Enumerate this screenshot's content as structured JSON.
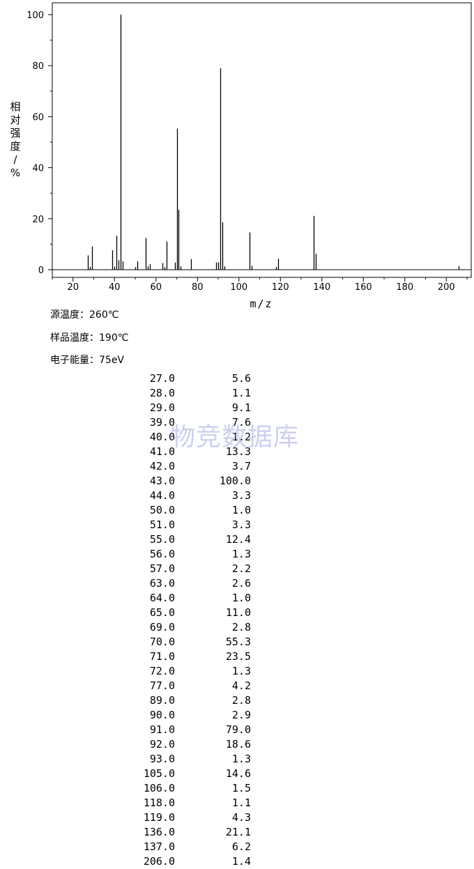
{
  "chart_data": {
    "type": "bar",
    "ylabel": "相对强度/%",
    "xlabel": "m/z",
    "xlim": [
      10,
      212
    ],
    "ylim": [
      0,
      100
    ],
    "x_ticks": [
      "20",
      "40",
      "60",
      "80",
      "100",
      "120",
      "140",
      "160",
      "180",
      "200"
    ],
    "y_ticks": [
      "0",
      "20",
      "40",
      "60",
      "80",
      "100"
    ],
    "x": [
      27.0,
      28.0,
      29.0,
      39.0,
      40.0,
      41.0,
      42.0,
      43.0,
      44.0,
      50.0,
      51.0,
      55.0,
      56.0,
      57.0,
      63.0,
      64.0,
      65.0,
      69.0,
      70.0,
      71.0,
      72.0,
      77.0,
      89.0,
      90.0,
      91.0,
      92.0,
      93.0,
      105.0,
      106.0,
      118.0,
      119.0,
      136.0,
      137.0,
      206.0
    ],
    "values": [
      5.6,
      1.1,
      9.1,
      7.6,
      1.2,
      13.3,
      3.7,
      100.0,
      3.3,
      1.0,
      3.3,
      12.4,
      1.3,
      2.2,
      2.6,
      1.0,
      11.0,
      2.8,
      55.3,
      23.5,
      1.3,
      4.2,
      2.8,
      2.9,
      79.0,
      18.6,
      1.3,
      14.6,
      1.5,
      1.1,
      4.3,
      21.1,
      6.2,
      1.4
    ]
  },
  "conditions": {
    "source_temp": "源温度：260℃",
    "sample_temp": "样品温度：190℃",
    "electron_energy": "电子能量：75eV"
  },
  "table": {
    "rows": [
      {
        "mz": "27.0",
        "intensity": "5.6"
      },
      {
        "mz": "28.0",
        "intensity": "1.1"
      },
      {
        "mz": "29.0",
        "intensity": "9.1"
      },
      {
        "mz": "39.0",
        "intensity": "7.6"
      },
      {
        "mz": "40.0",
        "intensity": "1.2"
      },
      {
        "mz": "41.0",
        "intensity": "13.3"
      },
      {
        "mz": "42.0",
        "intensity": "3.7"
      },
      {
        "mz": "43.0",
        "intensity": "100.0"
      },
      {
        "mz": "44.0",
        "intensity": "3.3"
      },
      {
        "mz": "50.0",
        "intensity": "1.0"
      },
      {
        "mz": "51.0",
        "intensity": "3.3"
      },
      {
        "mz": "55.0",
        "intensity": "12.4"
      },
      {
        "mz": "56.0",
        "intensity": "1.3"
      },
      {
        "mz": "57.0",
        "intensity": "2.2"
      },
      {
        "mz": "63.0",
        "intensity": "2.6"
      },
      {
        "mz": "64.0",
        "intensity": "1.0"
      },
      {
        "mz": "65.0",
        "intensity": "11.0"
      },
      {
        "mz": "69.0",
        "intensity": "2.8"
      },
      {
        "mz": "70.0",
        "intensity": "55.3"
      },
      {
        "mz": "71.0",
        "intensity": "23.5"
      },
      {
        "mz": "72.0",
        "intensity": "1.3"
      },
      {
        "mz": "77.0",
        "intensity": "4.2"
      },
      {
        "mz": "89.0",
        "intensity": "2.8"
      },
      {
        "mz": "90.0",
        "intensity": "2.9"
      },
      {
        "mz": "91.0",
        "intensity": "79.0"
      },
      {
        "mz": "92.0",
        "intensity": "18.6"
      },
      {
        "mz": "93.0",
        "intensity": "1.3"
      },
      {
        "mz": "105.0",
        "intensity": "14.6"
      },
      {
        "mz": "106.0",
        "intensity": "1.5"
      },
      {
        "mz": "118.0",
        "intensity": "1.1"
      },
      {
        "mz": "119.0",
        "intensity": "4.3"
      },
      {
        "mz": "136.0",
        "intensity": "21.1"
      },
      {
        "mz": "137.0",
        "intensity": "6.2"
      },
      {
        "mz": "206.0",
        "intensity": "1.4"
      }
    ]
  },
  "watermark": "物竞数据库"
}
